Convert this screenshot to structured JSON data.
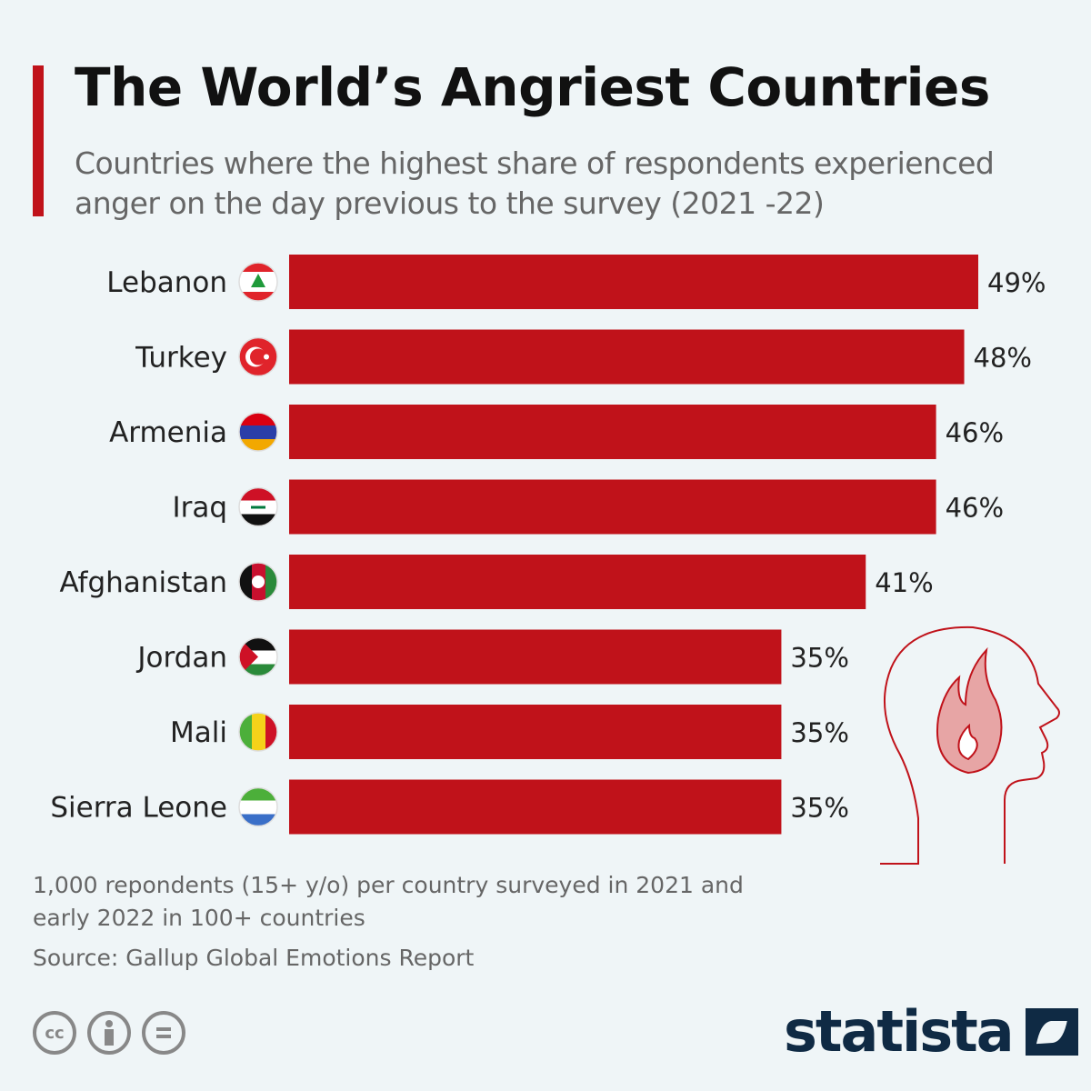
{
  "title": "The World’s Angriest Countries",
  "subtitle": "Countries where the highest share of respondents experienced anger on the day previous to the survey (2021 -22)",
  "chart_data": {
    "type": "bar",
    "orientation": "horizontal",
    "categories": [
      "Lebanon",
      "Turkey",
      "Armenia",
      "Iraq",
      "Afghanistan",
      "Jordan",
      "Mali",
      "Sierra Leone"
    ],
    "values": [
      49,
      48,
      46,
      46,
      41,
      35,
      35,
      35
    ],
    "data_labels": [
      "49%",
      "48%",
      "46%",
      "46%",
      "41%",
      "35%",
      "35%",
      "35%"
    ],
    "unit": "%",
    "bar_color": "#c0121a",
    "grid": false
  },
  "flags": [
    "lebanon-flag",
    "turkey-flag",
    "armenia-flag",
    "iraq-flag",
    "afghanistan-flag",
    "jordan-flag",
    "mali-flag",
    "sierra-leone-flag"
  ],
  "notes": {
    "line1": "1,000 repondents (15+ y/o) per country surveyed in 2021 and",
    "line2": "early 2022 in 100+ countries",
    "source": "Source: Gallup Global Emotions Report"
  },
  "license": {
    "cc": "cc"
  },
  "brand": "statista"
}
